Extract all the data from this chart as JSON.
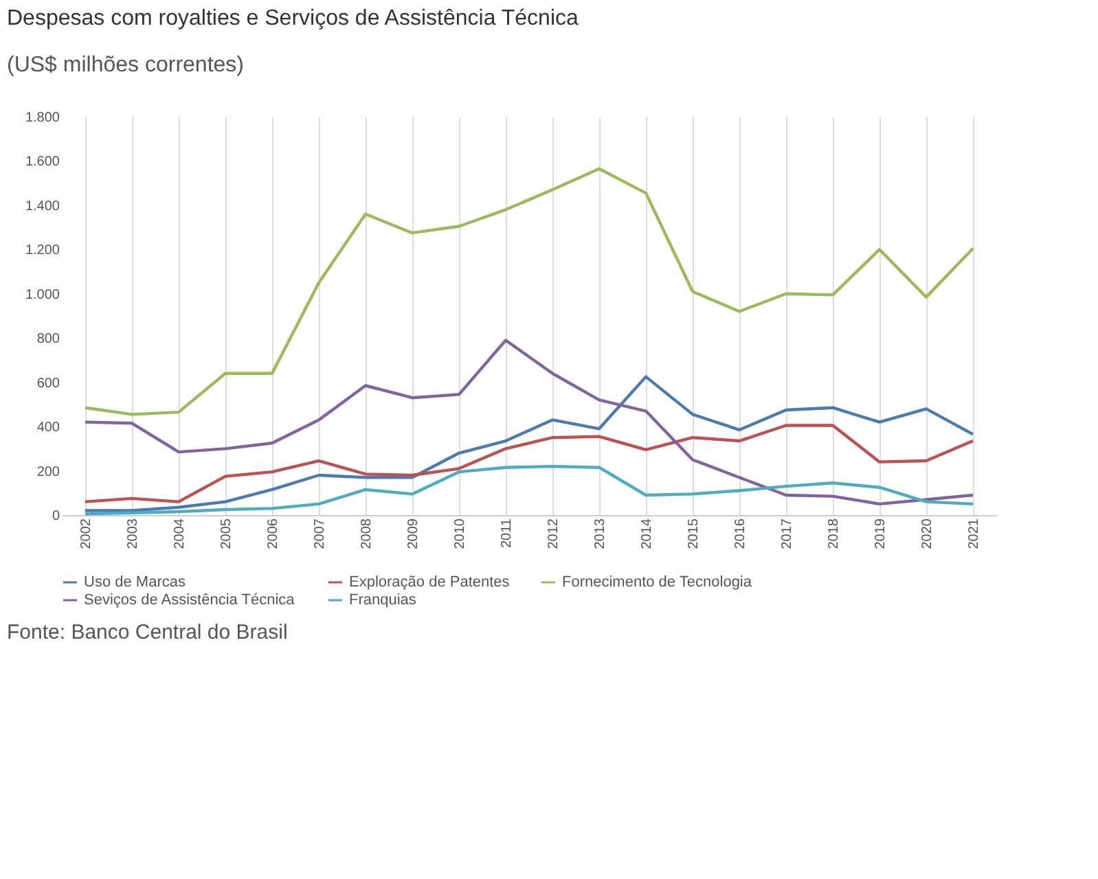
{
  "chart_data": {
    "type": "line",
    "title": "Despesas com royalties e Serviços de Assistência Técnica",
    "subtitle": "(US$ milhões correntes)",
    "categories": [
      "2002",
      "2003",
      "2004",
      "2005",
      "2006",
      "2007",
      "2008",
      "2009",
      "2010",
      "2011",
      "2012",
      "2013",
      "2014",
      "2015",
      "2016",
      "2017",
      "2018",
      "2019",
      "2020",
      "2021"
    ],
    "series": [
      {
        "name": "Uso de Marcas",
        "color": "#4a7ab5",
        "values": [
          20,
          20,
          35,
          60,
          115,
          180,
          170,
          170,
          280,
          335,
          430,
          390,
          625,
          455,
          385,
          475,
          485,
          420,
          480,
          365
        ]
      },
      {
        "name": "Exploração de Patentes",
        "color": "#c0504d",
        "values": [
          60,
          75,
          60,
          175,
          195,
          245,
          185,
          180,
          210,
          300,
          350,
          355,
          295,
          350,
          335,
          405,
          405,
          240,
          245,
          335
        ]
      },
      {
        "name": "Fornecimento de Tecnologia",
        "color": "#9bbb59",
        "values": [
          485,
          455,
          465,
          640,
          640,
          1050,
          1360,
          1275,
          1305,
          1380,
          1470,
          1565,
          1455,
          1010,
          920,
          1000,
          995,
          1200,
          985,
          1205
        ]
      },
      {
        "name": "Seviços de Assistência Técnica",
        "color": "#8064a2",
        "values": [
          420,
          415,
          285,
          300,
          325,
          430,
          585,
          530,
          545,
          790,
          640,
          520,
          470,
          250,
          170,
          90,
          85,
          50,
          70,
          90
        ]
      },
      {
        "name": "Franquias",
        "color": "#4bacc6",
        "values": [
          5,
          10,
          15,
          25,
          30,
          50,
          115,
          95,
          195,
          215,
          220,
          215,
          90,
          95,
          110,
          130,
          145,
          125,
          60,
          50
        ]
      }
    ],
    "ylim": [
      0,
      1800
    ],
    "yticks": [
      0,
      200,
      400,
      600,
      800,
      {
        "value": 1000,
        "label": "1.000"
      },
      {
        "value": 1200,
        "label": "1.200"
      },
      {
        "value": 1400,
        "label": "1.400"
      },
      {
        "value": 1600,
        "label": "1.600"
      },
      {
        "value": 1800,
        "label": "1.800"
      }
    ],
    "grid": "x",
    "legend": "bottom",
    "marker": "none",
    "line_style": "solid",
    "annotations": [
      "Fonte: Banco Central do Brasil"
    ]
  }
}
